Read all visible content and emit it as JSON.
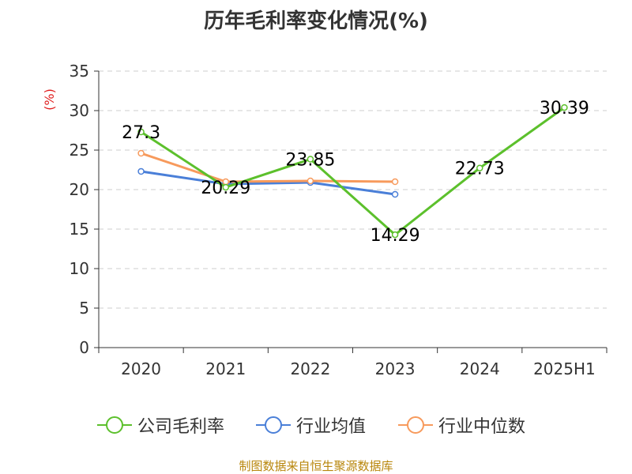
{
  "chart_data": {
    "type": "line",
    "title": "历年毛利率变化情况(%)",
    "ylabel": "(%)",
    "xlabel": "",
    "categories": [
      "2020",
      "2021",
      "2022",
      "2023",
      "2024",
      "2025H1"
    ],
    "ylim": [
      0,
      35
    ],
    "yticks": [
      0,
      5,
      10,
      15,
      20,
      25,
      30,
      35
    ],
    "grid": true,
    "legend_position": "bottom",
    "series": [
      {
        "name": "公司毛利率",
        "color": "#5cc02c",
        "values": [
          27.3,
          20.29,
          23.85,
          14.29,
          22.73,
          30.39
        ],
        "labels": [
          "27.3",
          "20.29",
          "23.85",
          "14.29",
          "22.73",
          "30.39"
        ]
      },
      {
        "name": "行业均值",
        "color": "#4a7fd8",
        "values": [
          22.3,
          20.7,
          20.9,
          19.4,
          null,
          null
        ]
      },
      {
        "name": "行业中位数",
        "color": "#f79a5c",
        "values": [
          24.6,
          21.0,
          21.1,
          21.0,
          null,
          null
        ]
      }
    ]
  },
  "source": "制图数据来自恒生聚源数据库"
}
